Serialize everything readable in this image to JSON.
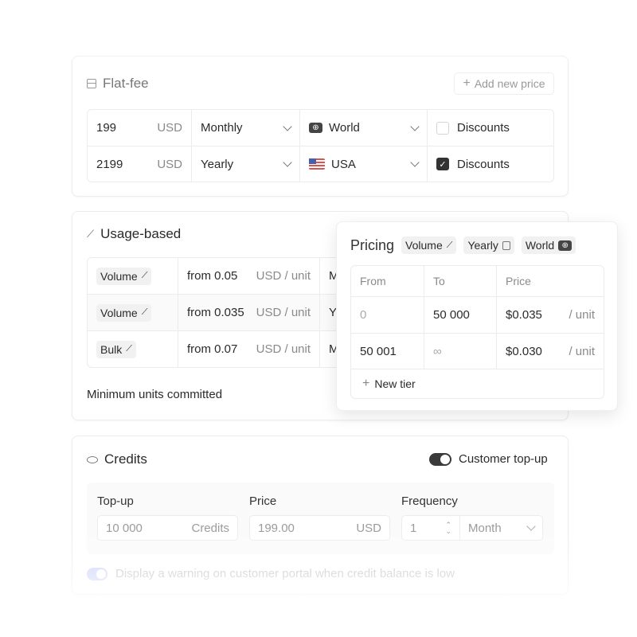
{
  "flat_fee": {
    "title": "Flat-fee",
    "add_button": "Add new price",
    "rows": [
      {
        "amount": "199",
        "currency": "USD",
        "period": "Monthly",
        "region": "World",
        "region_icon": "globe-icon",
        "discounts": "Discounts",
        "checked": false
      },
      {
        "amount": "2199",
        "currency": "USD",
        "period": "Yearly",
        "region": "USA",
        "region_icon": "us-flag-icon",
        "discounts": "Discounts",
        "checked": true
      }
    ]
  },
  "usage": {
    "title": "Usage-based",
    "rows": [
      {
        "model": "Volume",
        "price": "from 0.05",
        "unit": "USD / unit",
        "period": "M"
      },
      {
        "model": "Volume",
        "price": "from 0.035",
        "unit": "USD / unit",
        "period": "Y"
      },
      {
        "model": "Bulk",
        "price": "from 0.07",
        "unit": "USD / unit",
        "period": "M"
      }
    ],
    "minimum": "Minimum units committed"
  },
  "pricing": {
    "title": "Pricing",
    "chips": [
      "Volume",
      "Yearly",
      "World"
    ],
    "headers": [
      "From",
      "To",
      "Price"
    ],
    "rows": [
      {
        "from": "0",
        "to": "50 000",
        "price": "$0.035",
        "unit": "/ unit"
      },
      {
        "from": "50 001",
        "to": "∞",
        "price": "$0.030",
        "unit": "/ unit"
      }
    ],
    "new_tier": "New tier"
  },
  "credits": {
    "title": "Credits",
    "toggle_label": "Customer top-up",
    "toggle_on": true,
    "topup_label": "Top-up",
    "topup_value": "10 000",
    "topup_unit": "Credits",
    "price_label": "Price",
    "price_value": "199.00",
    "price_unit": "USD",
    "frequency_label": "Frequency",
    "frequency_value": "1",
    "frequency_period": "Month",
    "warning": "Display a warning on customer portal when credit balance is low"
  }
}
